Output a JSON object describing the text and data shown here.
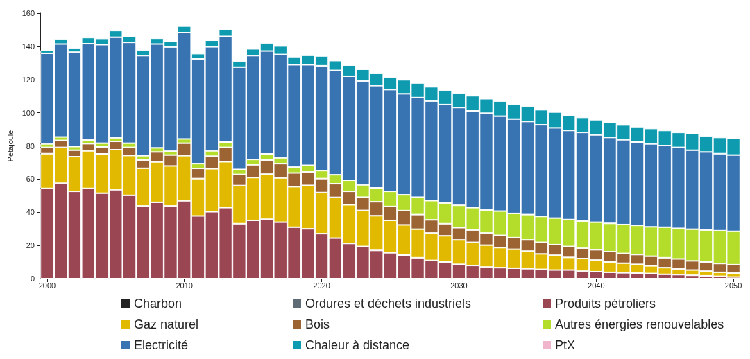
{
  "chart_data": {
    "type": "bar",
    "stacked": true,
    "ylabel": "Pétajoule",
    "ylim": [
      0,
      160
    ],
    "yticks": [
      0,
      20,
      40,
      60,
      80,
      100,
      120,
      140,
      160
    ],
    "grid": false,
    "legend": "bottom",
    "categories": [
      "2000",
      null,
      null,
      null,
      null,
      null,
      null,
      null,
      null,
      null,
      "2010",
      null,
      null,
      null,
      null,
      null,
      null,
      null,
      null,
      null,
      "2020",
      null,
      null,
      null,
      null,
      null,
      null,
      null,
      null,
      null,
      "2030",
      null,
      null,
      null,
      null,
      null,
      null,
      null,
      null,
      null,
      "2040",
      null,
      null,
      null,
      null,
      null,
      null,
      null,
      null,
      null,
      "2050"
    ],
    "series": [
      {
        "name": "Charbon",
        "color": "#222222",
        "values": [
          0,
          0,
          0,
          0,
          0,
          0,
          0,
          0,
          0,
          0,
          0,
          0,
          0,
          0,
          0,
          0,
          0,
          0,
          0,
          0,
          0,
          0,
          0,
          0,
          0,
          0,
          0,
          0,
          0,
          0,
          0,
          0,
          0,
          0,
          0,
          0,
          0,
          0,
          0,
          0,
          0,
          0,
          0,
          0,
          0,
          0,
          0,
          0,
          0,
          0,
          0
        ]
      },
      {
        "name": "Ordures et déchets industriels",
        "color": "#5f6b75",
        "values": [
          0,
          0,
          0,
          0,
          0,
          0,
          0,
          0,
          0,
          0,
          0,
          0,
          0,
          0,
          0,
          0,
          0,
          0,
          0,
          0,
          0,
          0,
          0,
          0,
          0,
          0,
          0,
          0,
          0,
          0,
          0,
          0,
          0,
          0,
          0,
          0,
          0,
          0,
          0,
          0,
          0,
          0,
          0,
          0,
          0,
          0,
          0,
          0,
          0,
          0,
          0
        ]
      },
      {
        "name": "Produits pétroliers",
        "color": "#9b4653",
        "values": [
          54.4,
          57.5,
          52.6,
          54.4,
          51.5,
          53.6,
          50.2,
          43.8,
          46.0,
          43.8,
          46.9,
          37.8,
          40.3,
          42.8,
          33.1,
          35.1,
          35.8,
          34.0,
          31.0,
          30.0,
          27.1,
          24.4,
          21.2,
          19.4,
          17.0,
          15.6,
          14.2,
          12.6,
          11.0,
          10.0,
          8.6,
          7.9,
          7.0,
          6.6,
          6.3,
          6.0,
          5.6,
          5.2,
          5.2,
          4.5,
          4.2,
          3.8,
          3.5,
          3.3,
          3.1,
          2.6,
          2.4,
          2.0,
          1.7,
          1.4,
          1.0
        ]
      },
      {
        "name": "Gaz naturel",
        "color": "#e1b900",
        "values": [
          20.9,
          21.6,
          20.9,
          22.6,
          23.7,
          24.1,
          24.0,
          22.7,
          24.3,
          24.1,
          27.2,
          22.5,
          25.9,
          27.6,
          23.0,
          25.8,
          27.2,
          26.7,
          24.4,
          26.2,
          24.8,
          24.6,
          23.3,
          21.7,
          20.9,
          19.5,
          18.2,
          17.2,
          16.5,
          15.8,
          14.7,
          14.0,
          13.2,
          12.1,
          11.4,
          10.6,
          9.3,
          8.9,
          7.6,
          7.6,
          7.0,
          6.2,
          5.8,
          5.3,
          4.6,
          4.0,
          3.5,
          3.2,
          2.8,
          2.4,
          2.3
        ]
      },
      {
        "name": "Bois",
        "color": "#9c6433",
        "values": [
          3.8,
          4.2,
          3.9,
          4.3,
          4.2,
          5.0,
          4.9,
          4.9,
          6.0,
          6.6,
          7.5,
          6.1,
          7.6,
          8.7,
          6.7,
          7.7,
          8.4,
          8.6,
          8.3,
          8.1,
          8.4,
          8.2,
          8.1,
          8.0,
          8.4,
          8.4,
          8.6,
          8.8,
          7.9,
          7.3,
          7.4,
          7.4,
          7.3,
          7.4,
          7.0,
          6.7,
          7.0,
          6.4,
          6.6,
          6.2,
          6.2,
          6.3,
          5.9,
          5.9,
          5.8,
          6.0,
          6.0,
          5.5,
          5.5,
          5.3,
          5.1
        ]
      },
      {
        "name": "Autres énergies renouvelables",
        "color": "#b3dd2a",
        "values": [
          2.1,
          2.1,
          2.2,
          2.2,
          2.2,
          2.2,
          2.5,
          2.7,
          2.5,
          2.3,
          2.6,
          2.9,
          3.2,
          3.2,
          3.0,
          3.2,
          3.8,
          3.5,
          3.5,
          4.0,
          4.8,
          5.4,
          6.7,
          7.4,
          8.4,
          9.1,
          9.5,
          10.5,
          11.6,
          12.5,
          13.5,
          13.5,
          13.9,
          14.6,
          14.6,
          15.3,
          15.6,
          16.0,
          16.2,
          16.4,
          16.6,
          17.0,
          17.4,
          17.6,
          17.7,
          18.4,
          18.4,
          19.1,
          19.3,
          19.8,
          20.1
        ]
      },
      {
        "name": "Electricité",
        "color": "#3874b2",
        "values": [
          54.6,
          56.0,
          56.9,
          58.1,
          59.4,
          60.6,
          60.8,
          60.3,
          62.6,
          62.8,
          64.1,
          63.1,
          62.7,
          63.7,
          61.7,
          62.6,
          62.0,
          62.3,
          61.7,
          60.6,
          63.2,
          62.9,
          62.7,
          62.6,
          61.6,
          61.3,
          60.9,
          60.0,
          60.0,
          59.3,
          58.9,
          58.3,
          58.3,
          57.2,
          56.9,
          56.1,
          55.2,
          54.4,
          53.7,
          53.4,
          52.6,
          51.8,
          51.1,
          50.2,
          50.0,
          49.2,
          48.8,
          47.6,
          47.0,
          46.4,
          46.0
        ]
      },
      {
        "name": "Chaleur à distance",
        "color": "#0e9bb0",
        "values": [
          1.9,
          3.0,
          2.5,
          3.7,
          3.8,
          4.0,
          3.6,
          3.5,
          3.5,
          3.4,
          3.9,
          3.2,
          4.0,
          4.2,
          3.6,
          4.1,
          4.9,
          5.1,
          4.9,
          5.7,
          5.9,
          5.9,
          6.7,
          7.1,
          7.4,
          7.7,
          8.4,
          8.8,
          8.6,
          8.6,
          8.8,
          9.1,
          8.7,
          9.1,
          9.1,
          9.2,
          9.1,
          9.5,
          9.3,
          9.1,
          9.2,
          9.0,
          8.9,
          9.3,
          9.3,
          9.1,
          9.0,
          10.0,
          9.8,
          9.8,
          9.9
        ]
      },
      {
        "name": "PtX",
        "color": "#f0b4cc",
        "values": [
          0,
          0,
          0,
          0,
          0,
          0,
          0,
          0,
          0,
          0,
          0,
          0,
          0,
          0,
          0,
          0,
          0,
          0,
          0,
          0,
          0,
          0,
          0,
          0,
          0,
          0,
          0,
          0,
          0,
          0,
          0,
          0,
          0,
          0,
          0,
          0,
          0,
          0,
          0,
          0,
          0,
          0,
          0,
          0,
          0,
          0,
          0,
          0,
          0,
          0,
          0
        ]
      }
    ]
  }
}
